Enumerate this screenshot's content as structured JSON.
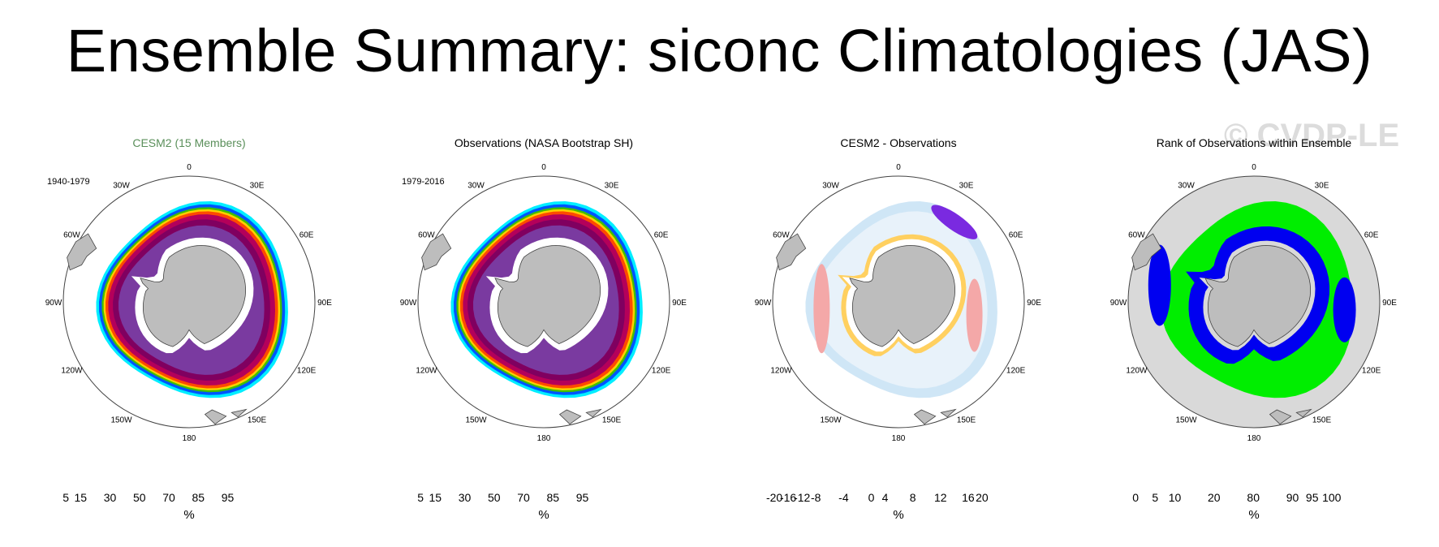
{
  "title": "Ensemble Summary: siconc Climatologies (JAS)",
  "watermark": "© CVDP-LE",
  "map_labels": [
    {
      "lon": 0,
      "text": "0"
    },
    {
      "lon": 30,
      "text": "30E"
    },
    {
      "lon": 60,
      "text": "60E"
    },
    {
      "lon": 90,
      "text": "90E"
    },
    {
      "lon": 120,
      "text": "120E"
    },
    {
      "lon": 150,
      "text": "150E"
    },
    {
      "lon": 180,
      "text": "180"
    },
    {
      "lon": -150,
      "text": "150W"
    },
    {
      "lon": -120,
      "text": "120W"
    },
    {
      "lon": -90,
      "text": "90W"
    },
    {
      "lon": -60,
      "text": "60W"
    },
    {
      "lon": -30,
      "text": "30W"
    }
  ],
  "panels": [
    {
      "title": "CESM2 (15 Members)",
      "title_color": "#5a8f5a",
      "period": "1940-1979",
      "field": "concentration",
      "unit": "%",
      "colorbar": {
        "colors": [
          "#00eeff",
          "#00a6ff",
          "#0055ff",
          "#0a00d6",
          "#00c864",
          "#40c000",
          "#ccee00",
          "#ffd000",
          "#ff9a00",
          "#ff4a00",
          "#e0001a",
          "#b4005a",
          "#800060",
          "#6a2a90",
          "#9a5ab8",
          "#c8a8dc"
        ],
        "labels": [
          {
            "after": 1,
            "text": "5"
          },
          {
            "after": 2,
            "text": "15"
          },
          {
            "after": 4,
            "text": "30"
          },
          {
            "after": 6,
            "text": "50"
          },
          {
            "after": 8,
            "text": "70"
          },
          {
            "after": 10,
            "text": "85"
          },
          {
            "after": 12,
            "text": "95"
          }
        ]
      }
    },
    {
      "title": "Observations (NASA Bootstrap SH)",
      "title_color": "#000000",
      "period": "1979-2016",
      "field": "concentration",
      "unit": "%",
      "colorbar": {
        "colors": [
          "#00eeff",
          "#00a6ff",
          "#0055ff",
          "#0a00d6",
          "#00c864",
          "#40c000",
          "#ccee00",
          "#ffd000",
          "#ff9a00",
          "#ff4a00",
          "#e0001a",
          "#b4005a",
          "#800060",
          "#6a2a90",
          "#9a5ab8",
          "#c8a8dc"
        ],
        "labels": [
          {
            "after": 1,
            "text": "5"
          },
          {
            "after": 2,
            "text": "15"
          },
          {
            "after": 4,
            "text": "30"
          },
          {
            "after": 6,
            "text": "50"
          },
          {
            "after": 8,
            "text": "70"
          },
          {
            "after": 10,
            "text": "85"
          },
          {
            "after": 12,
            "text": "95"
          }
        ]
      }
    },
    {
      "title": "CESM2 - Observations",
      "title_color": "#000000",
      "period": "",
      "field": "difference",
      "unit": "%",
      "colorbar": {
        "colors": [
          "#7a1fe0",
          "#5a2ae8",
          "#3a3ae8",
          "#2a55e8",
          "#3a7ae8",
          "#4a9ae8",
          "#6ab8ee",
          "#9ad0f0",
          "#fff6a0",
          "#ffe060",
          "#ffc020",
          "#ffa000",
          "#ff7000",
          "#ff4000",
          "#e81010",
          "#c80000",
          "#f0a0a0"
        ],
        "labels": [
          {
            "after": 1,
            "text": "-20"
          },
          {
            "after": 2,
            "text": "-16"
          },
          {
            "after": 3,
            "text": "-12"
          },
          {
            "after": 4,
            "text": "-8"
          },
          {
            "after": 6,
            "text": "-4"
          },
          {
            "after": 8,
            "text": "0"
          },
          {
            "after": 9,
            "text": "4"
          },
          {
            "after": 11,
            "text": "8"
          },
          {
            "after": 13,
            "text": "12"
          },
          {
            "after": 15,
            "text": "16"
          },
          {
            "after": 16,
            "text": "20"
          }
        ]
      }
    },
    {
      "title": "Rank of Observations within Ensemble",
      "title_color": "#000000",
      "period": "",
      "field": "rank",
      "unit": "%",
      "colorbar": {
        "colors": [
          "#0000ff",
          "#6b6bf0",
          "#b0b0f4",
          "#e4e4fa",
          "#f4f4fd",
          "#f4f4fd",
          "#ffffff",
          "#f2fff2",
          "#e0ffe0",
          "#b8ffb8",
          "#78ff78",
          "#00ff00"
        ],
        "labels": [
          {
            "after": 1,
            "text": "0"
          },
          {
            "after": 2,
            "text": "5"
          },
          {
            "after": 3,
            "text": "10"
          },
          {
            "after": 5,
            "text": "20"
          },
          {
            "after": 7,
            "text": "80"
          },
          {
            "after": 9,
            "text": "90"
          },
          {
            "after": 10,
            "text": "95"
          },
          {
            "after": 11,
            "text": "100"
          }
        ]
      }
    }
  ]
}
